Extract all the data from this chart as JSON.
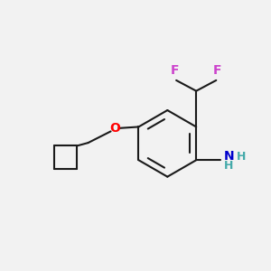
{
  "background_color": "#f2f2f2",
  "bond_color": "#1a1a1a",
  "F_color": "#cc44cc",
  "O_color": "#ff0000",
  "N_color": "#0000cc",
  "H_color": "#44aaaa",
  "bond_width": 1.5,
  "figsize": [
    3.0,
    3.0
  ],
  "dpi": 100,
  "xlim": [
    0,
    10
  ],
  "ylim": [
    0,
    10
  ]
}
